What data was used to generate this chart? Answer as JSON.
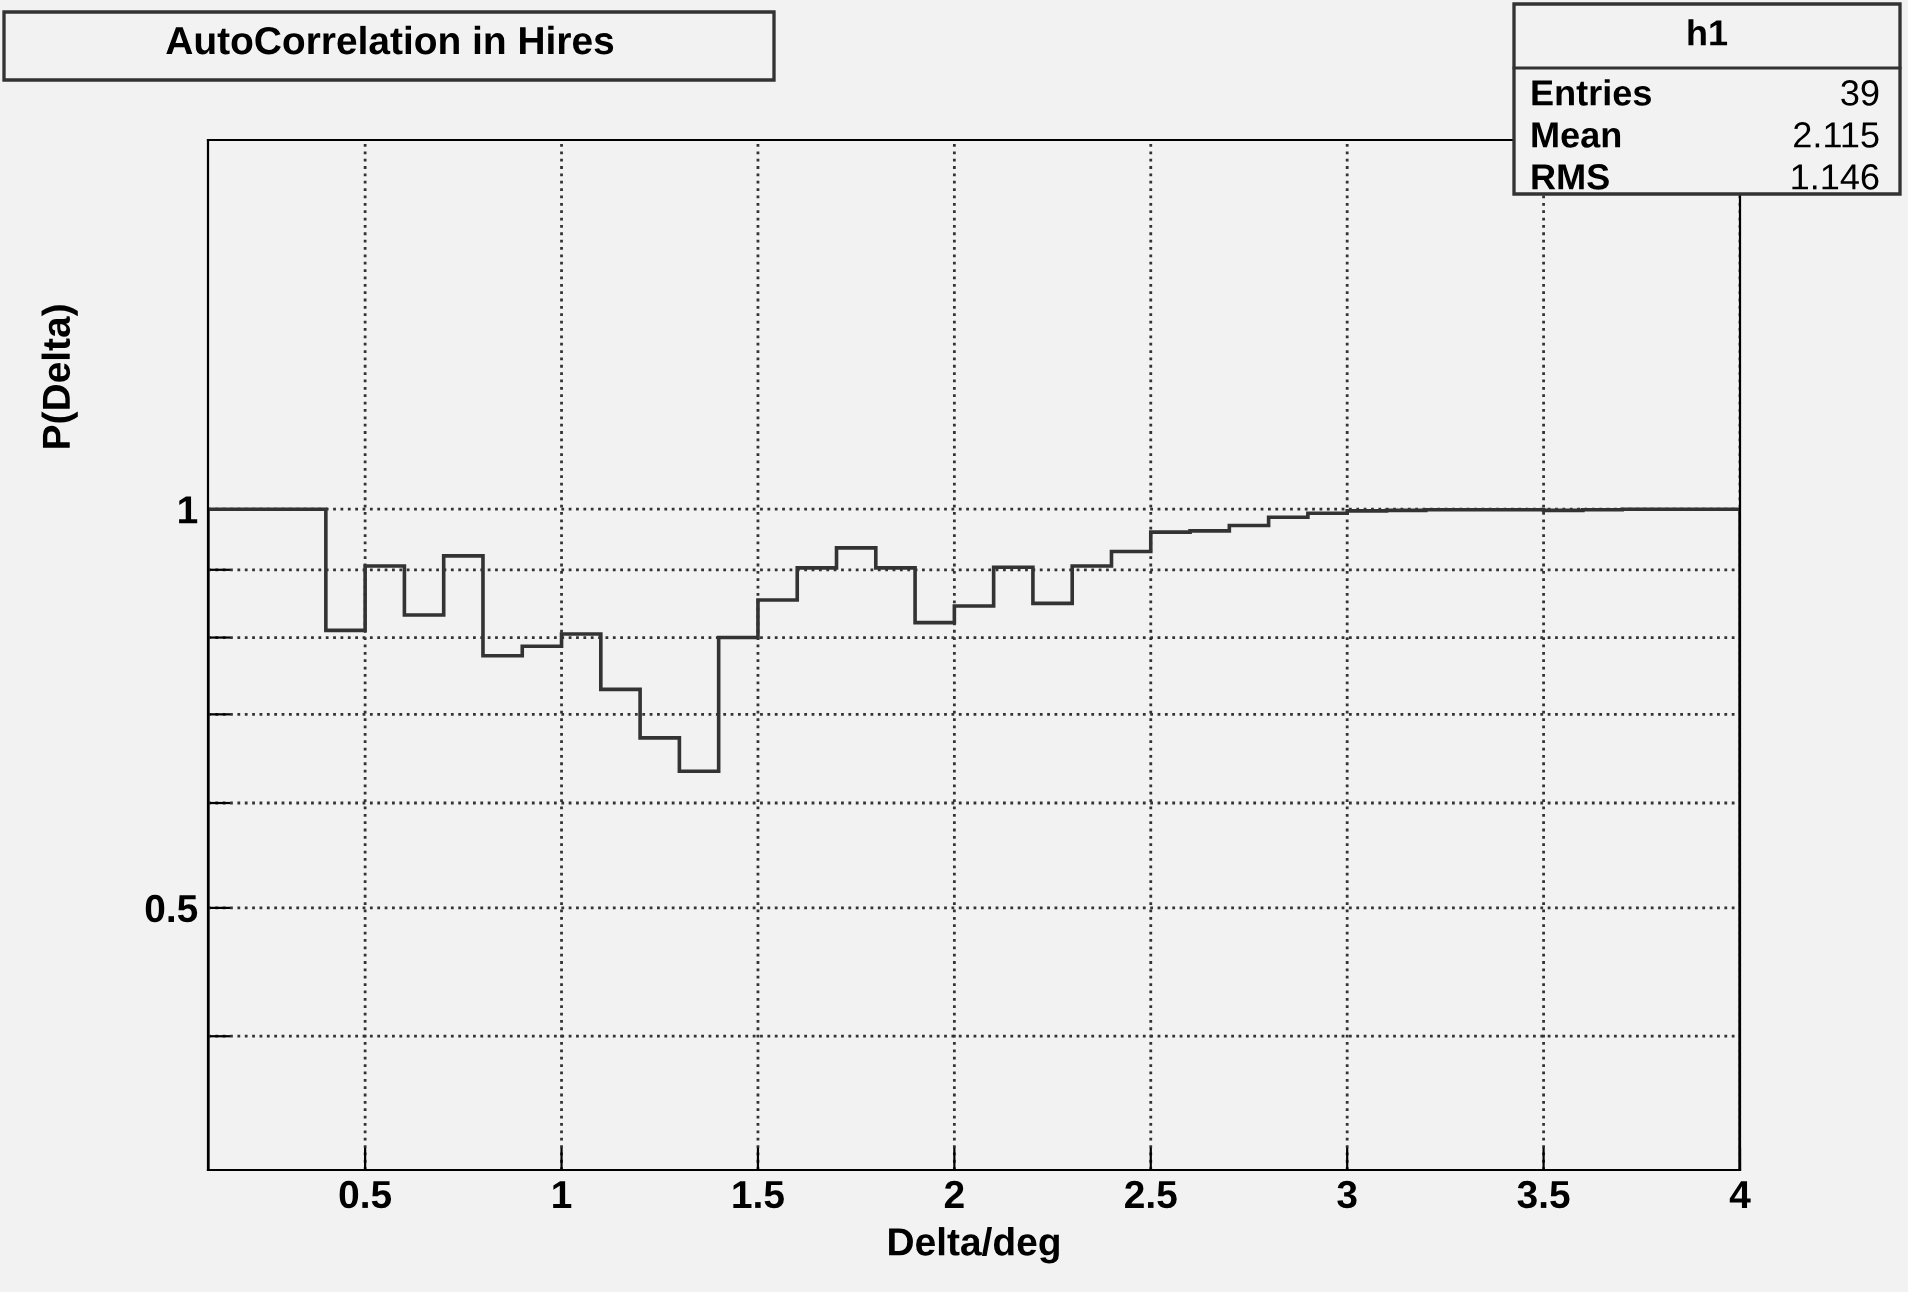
{
  "chart_data": {
    "type": "histogram",
    "title": "AutoCorrelation in Hires",
    "xlabel": "Delta/deg",
    "ylabel": "P(Delta)",
    "bins": [
      0.1,
      0.2,
      0.3,
      0.4,
      0.5,
      0.6,
      0.7,
      0.8,
      0.9,
      1.0,
      1.1,
      1.2,
      1.3,
      1.4,
      1.5,
      1.6,
      1.7,
      1.8,
      1.9,
      2.0,
      2.1,
      2.2,
      2.3,
      2.4,
      2.5,
      2.6,
      2.7,
      2.8,
      2.9,
      3.0,
      3.1,
      3.2,
      3.3,
      3.4,
      3.5,
      3.6,
      3.7,
      3.8,
      3.9,
      4.0
    ],
    "values": [
      1.0,
      1.0,
      1.0,
      0.81,
      0.906,
      0.832,
      0.922,
      0.775,
      0.788,
      0.805,
      0.731,
      0.672,
      0.634,
      0.8,
      0.854,
      0.903,
      0.935,
      0.903,
      0.821,
      0.845,
      0.904,
      0.849,
      0.906,
      0.929,
      0.961,
      0.963,
      0.972,
      0.986,
      0.993,
      0.997,
      0.998,
      0.999,
      0.999,
      0.999,
      0.998,
      0.999,
      1.0,
      1.0,
      1.0
    ],
    "color": "#333333",
    "log": "y",
    "xlim": [
      0.1,
      4
    ],
    "ylim": [
      0.317,
      1.9
    ],
    "xticks": [
      0.5,
      1,
      1.5,
      2,
      2.5,
      3,
      3.5,
      4
    ],
    "yticks": [
      {
        "value": 0.4,
        "label": null
      },
      {
        "value": 0.5,
        "label": "0.5"
      },
      {
        "value": 0.6,
        "label": null
      },
      {
        "value": 0.7,
        "label": null
      },
      {
        "value": 0.8,
        "label": null
      },
      {
        "value": 0.9,
        "label": null
      },
      1
    ],
    "grid": true,
    "legend": false,
    "annotations": [
      "h1",
      "Entries",
      "39",
      "Mean",
      "2.115",
      "RMS",
      "1.146"
    ]
  }
}
